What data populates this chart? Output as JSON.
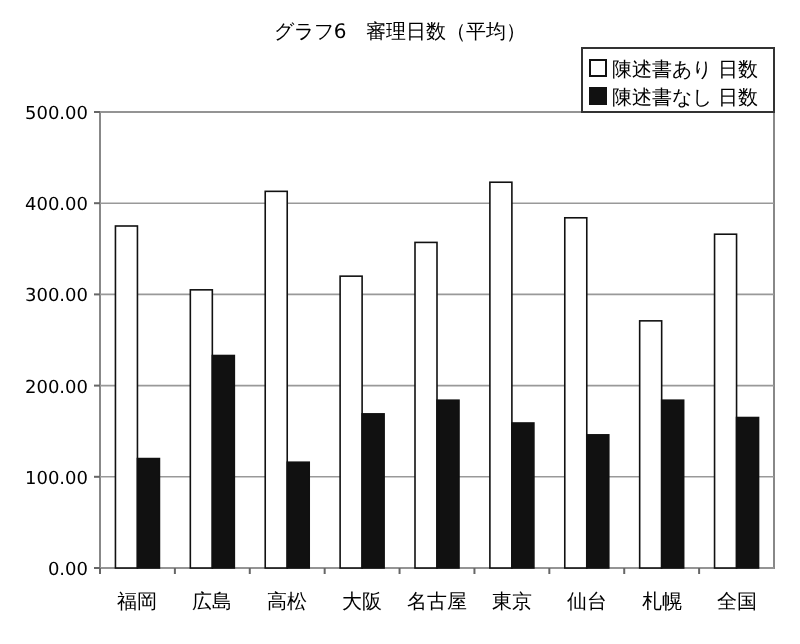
{
  "chart_data": {
    "type": "bar",
    "title": "グラフ6　審理日数（平均）",
    "categories": [
      "福岡",
      "広島",
      "高松",
      "大阪",
      "名古屋",
      "東京",
      "仙台",
      "札幌",
      "全国"
    ],
    "series": [
      {
        "name": "陳述書あり 日数",
        "color": "#ffffff",
        "values": [
          375,
          305,
          413,
          320,
          357,
          423,
          384,
          271,
          366
        ]
      },
      {
        "name": "陳述書なし 日数",
        "color": "#111111",
        "values": [
          120,
          233,
          116,
          169,
          184,
          159,
          146,
          184,
          165
        ]
      }
    ],
    "ylim": [
      0,
      500
    ],
    "yticks": [
      {
        "value": 0,
        "label": "0.00"
      },
      {
        "value": 100,
        "label": "100.00"
      },
      {
        "value": 200,
        "label": "200.00"
      },
      {
        "value": 300,
        "label": "300.00"
      },
      {
        "value": 400,
        "label": "400.00"
      },
      {
        "value": 500,
        "label": "500.00"
      }
    ],
    "grid": "y",
    "legend": "top right"
  }
}
